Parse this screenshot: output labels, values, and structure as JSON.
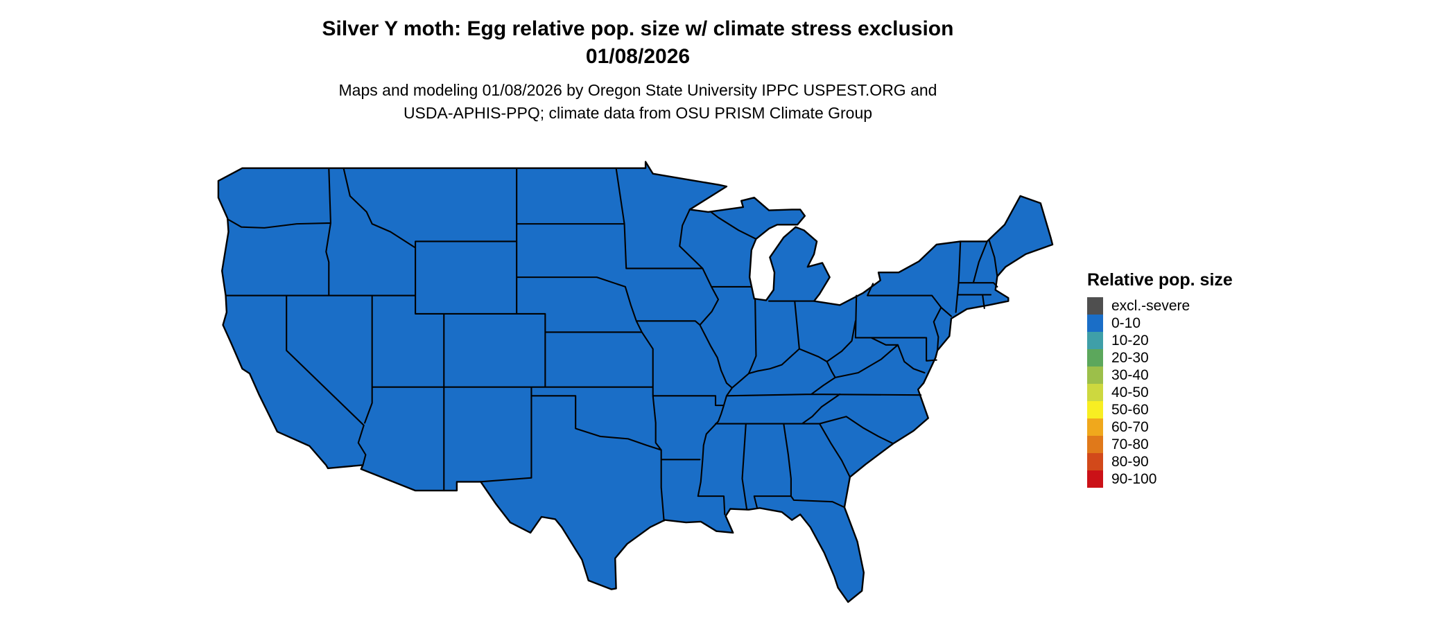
{
  "header": {
    "title_line1": "Silver Y moth: Egg relative pop. size w/ climate stress exclusion",
    "title_line2": "01/08/2026",
    "subtitle_line1": "Maps and modeling 01/08/2026 by Oregon State University IPPC USPEST.ORG and",
    "subtitle_line2": "USDA-APHIS-PPQ; climate data from OSU PRISM Climate Group"
  },
  "map": {
    "region": "Contiguous United States",
    "fill_color": "#1a6ec7",
    "border_color": "#000000"
  },
  "legend": {
    "title": "Relative pop. size",
    "items": [
      {
        "label": "excl.-severe",
        "color": "#4f4f4f"
      },
      {
        "label": "0-10",
        "color": "#1a6ec7"
      },
      {
        "label": "10-20",
        "color": "#3f9fa8"
      },
      {
        "label": "20-30",
        "color": "#5ca75c"
      },
      {
        "label": "30-40",
        "color": "#9cbf4a"
      },
      {
        "label": "40-50",
        "color": "#cdd83f"
      },
      {
        "label": "50-60",
        "color": "#f8ee22"
      },
      {
        "label": "60-70",
        "color": "#f0a81c"
      },
      {
        "label": "70-80",
        "color": "#e0791a"
      },
      {
        "label": "80-90",
        "color": "#d2491a"
      },
      {
        "label": "90-100",
        "color": "#cb1117"
      }
    ]
  }
}
